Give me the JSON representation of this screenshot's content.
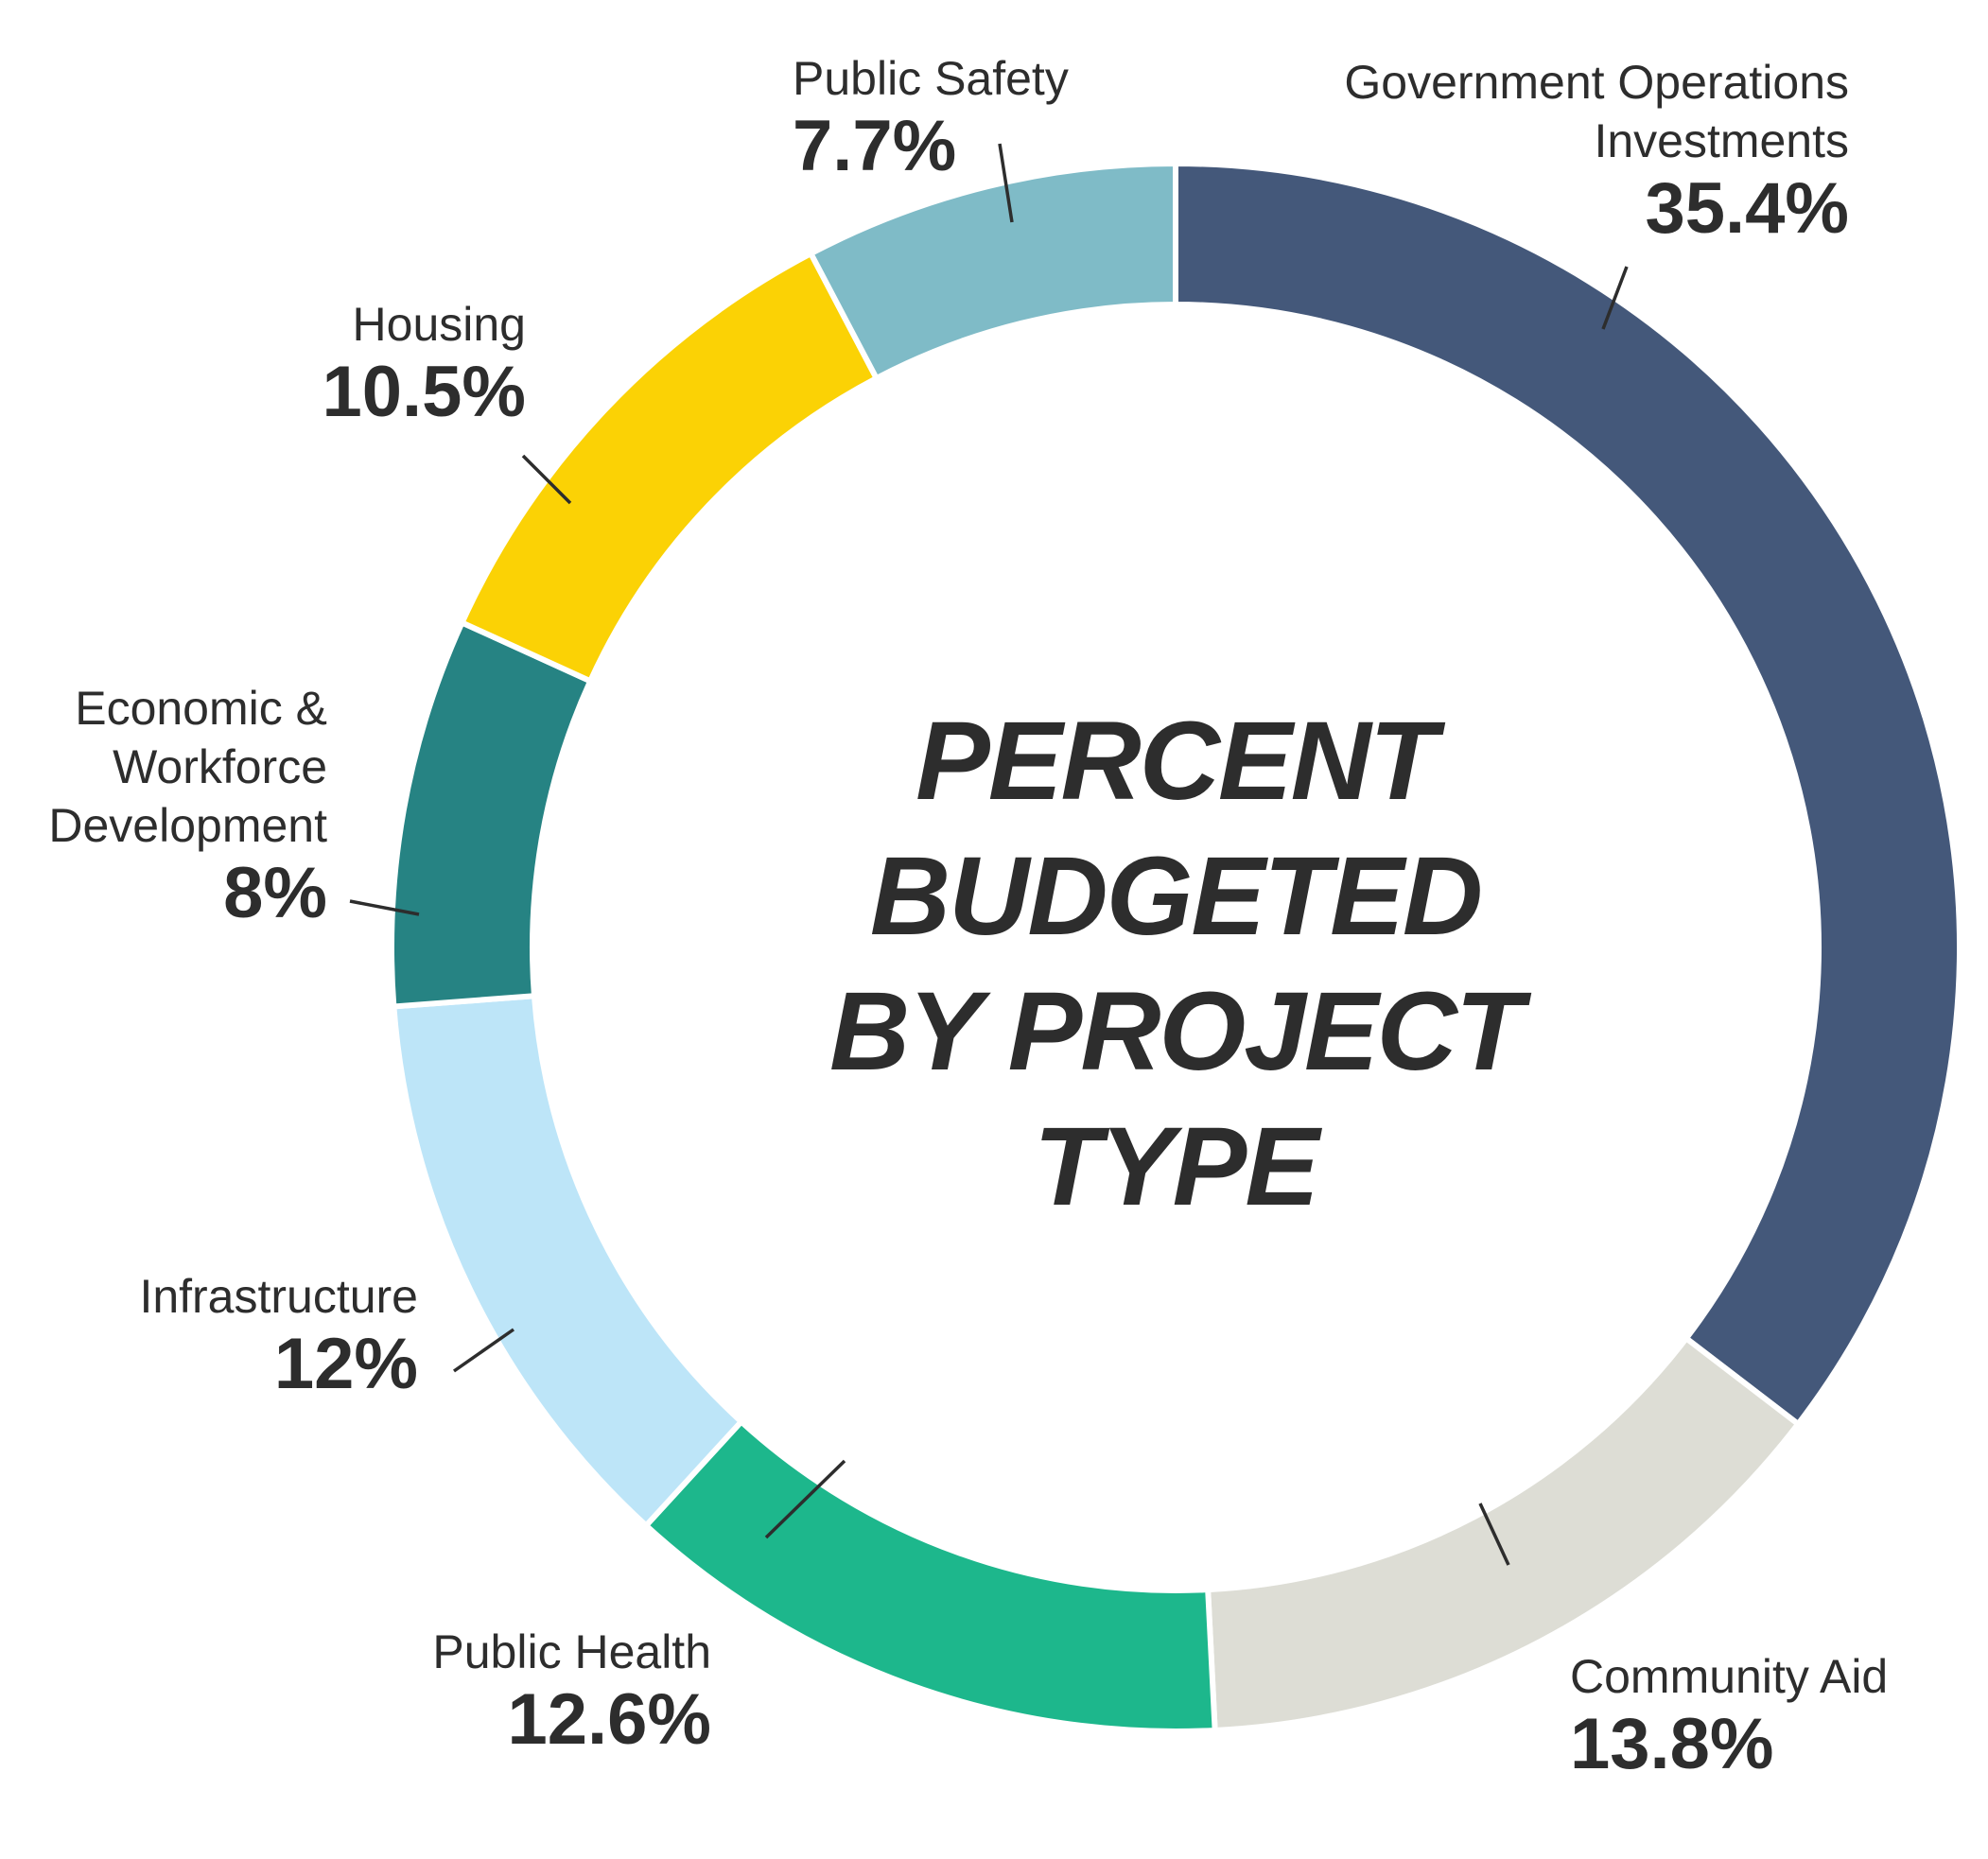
{
  "chart_data": {
    "type": "pie",
    "style": "donut",
    "title": [
      "PERCENT",
      "BUDGETED",
      "BY PROJECT",
      "TYPE"
    ],
    "slices": [
      {
        "name": [
          "Government Operations",
          "Investments"
        ],
        "label": "35.4%",
        "value": 35.4,
        "color": "#44587a"
      },
      {
        "name": [
          "Community Aid"
        ],
        "label": "13.8%",
        "value": 13.8,
        "color": "#ddddd5"
      },
      {
        "name": [
          "Public Health"
        ],
        "label": "12.6%",
        "value": 12.6,
        "color": "#1db78c"
      },
      {
        "name": [
          "Infrastructure"
        ],
        "label": "12%",
        "value": 12,
        "color": "#bde5f8"
      },
      {
        "name": [
          "Economic &",
          "Workforce",
          "Development"
        ],
        "label": "8%",
        "value": 8,
        "color": "#268383"
      },
      {
        "name": [
          "Housing"
        ],
        "label": "10.5%",
        "value": 10.5,
        "color": "#fbd205"
      },
      {
        "name": [
          "Public Safety"
        ],
        "label": "7.7%",
        "value": 7.7,
        "color": "#7fbbc7"
      }
    ]
  }
}
